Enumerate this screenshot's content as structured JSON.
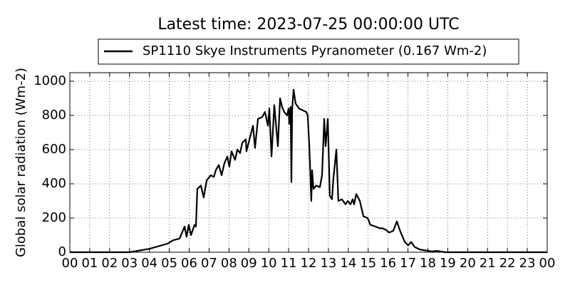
{
  "chart_data": {
    "type": "line",
    "title": "Latest time: 2023-07-25 00:00:00 UTC",
    "y_label": "Global solar radiation (Wm-2)",
    "x": [
      0,
      3.01,
      4.0,
      4.91,
      5.19,
      5.52,
      5.77,
      5.87,
      5.98,
      6.09,
      6.27,
      6.34,
      6.41,
      6.59,
      6.73,
      6.88,
      7.09,
      7.24,
      7.34,
      7.49,
      7.63,
      7.77,
      7.92,
      8.02,
      8.13,
      8.31,
      8.42,
      8.56,
      8.67,
      8.85,
      8.88,
      9.1,
      9.21,
      9.31,
      9.46,
      9.67,
      9.81,
      9.96,
      10.03,
      10.14,
      10.28,
      10.46,
      10.57,
      10.67,
      10.78,
      10.92,
      11.0,
      11.03,
      11.1,
      11.14,
      11.18,
      11.25,
      11.35,
      11.53,
      11.89,
      11.96,
      12.04,
      12.14,
      12.18,
      12.25,
      12.39,
      12.57,
      12.68,
      12.79,
      12.86,
      12.97,
      13.07,
      13.18,
      13.25,
      13.4,
      13.5,
      13.68,
      13.86,
      13.97,
      14.11,
      14.22,
      14.29,
      14.4,
      14.58,
      14.76,
      14.97,
      15.11,
      15.37,
      15.58,
      15.72,
      15.9,
      16.05,
      16.26,
      16.44,
      16.62,
      16.84,
      17.01,
      17.16,
      17.34,
      17.62,
      17.91,
      18.2,
      18.45,
      18.88,
      24
    ],
    "series": [
      {
        "name": "SP1110 Skye Instruments Pyranometer (0.167 Wm-2)",
        "color": "#000000",
        "values": [
          0,
          0,
          20,
          50,
          70,
          80,
          150,
          90,
          160,
          100,
          160,
          150,
          370,
          390,
          320,
          420,
          450,
          440,
          480,
          510,
          450,
          520,
          560,
          500,
          590,
          540,
          600,
          580,
          640,
          660,
          590,
          690,
          740,
          610,
          780,
          790,
          820,
          740,
          840,
          560,
          860,
          620,
          900,
          850,
          820,
          800,
          840,
          750,
          850,
          410,
          840,
          950,
          870,
          840,
          820,
          800,
          620,
          300,
          480,
          370,
          390,
          380,
          450,
          780,
          620,
          780,
          330,
          310,
          430,
          600,
          300,
          310,
          280,
          300,
          280,
          310,
          280,
          340,
          300,
          210,
          200,
          160,
          150,
          140,
          140,
          130,
          115,
          125,
          180,
          120,
          60,
          40,
          60,
          30,
          15,
          10,
          5,
          8,
          0,
          0
        ]
      }
    ],
    "xlim": [
      0,
      24
    ],
    "xticks": [
      {
        "value": 0,
        "label": "00"
      },
      {
        "value": 1,
        "label": "01"
      },
      {
        "value": 2,
        "label": "02"
      },
      {
        "value": 3,
        "label": "03"
      },
      {
        "value": 4,
        "label": "04"
      },
      {
        "value": 5,
        "label": "05"
      },
      {
        "value": 6,
        "label": "06"
      },
      {
        "value": 7,
        "label": "07"
      },
      {
        "value": 8,
        "label": "08"
      },
      {
        "value": 9,
        "label": "09"
      },
      {
        "value": 10,
        "label": "10"
      },
      {
        "value": 11,
        "label": "11"
      },
      {
        "value": 12,
        "label": "12"
      },
      {
        "value": 13,
        "label": "13"
      },
      {
        "value": 14,
        "label": "14"
      },
      {
        "value": 15,
        "label": "15"
      },
      {
        "value": 16,
        "label": "16"
      },
      {
        "value": 17,
        "label": "17"
      },
      {
        "value": 18,
        "label": "18"
      },
      {
        "value": 19,
        "label": "19"
      },
      {
        "value": 20,
        "label": "20"
      },
      {
        "value": 21,
        "label": "21"
      },
      {
        "value": 22,
        "label": "22"
      },
      {
        "value": 23,
        "label": "23"
      },
      {
        "value": 24,
        "label": "00"
      }
    ],
    "ylim": [
      0,
      1050
    ],
    "yticks": [
      0,
      200,
      400,
      600,
      800,
      1000
    ],
    "grid": true,
    "legend": "top"
  }
}
